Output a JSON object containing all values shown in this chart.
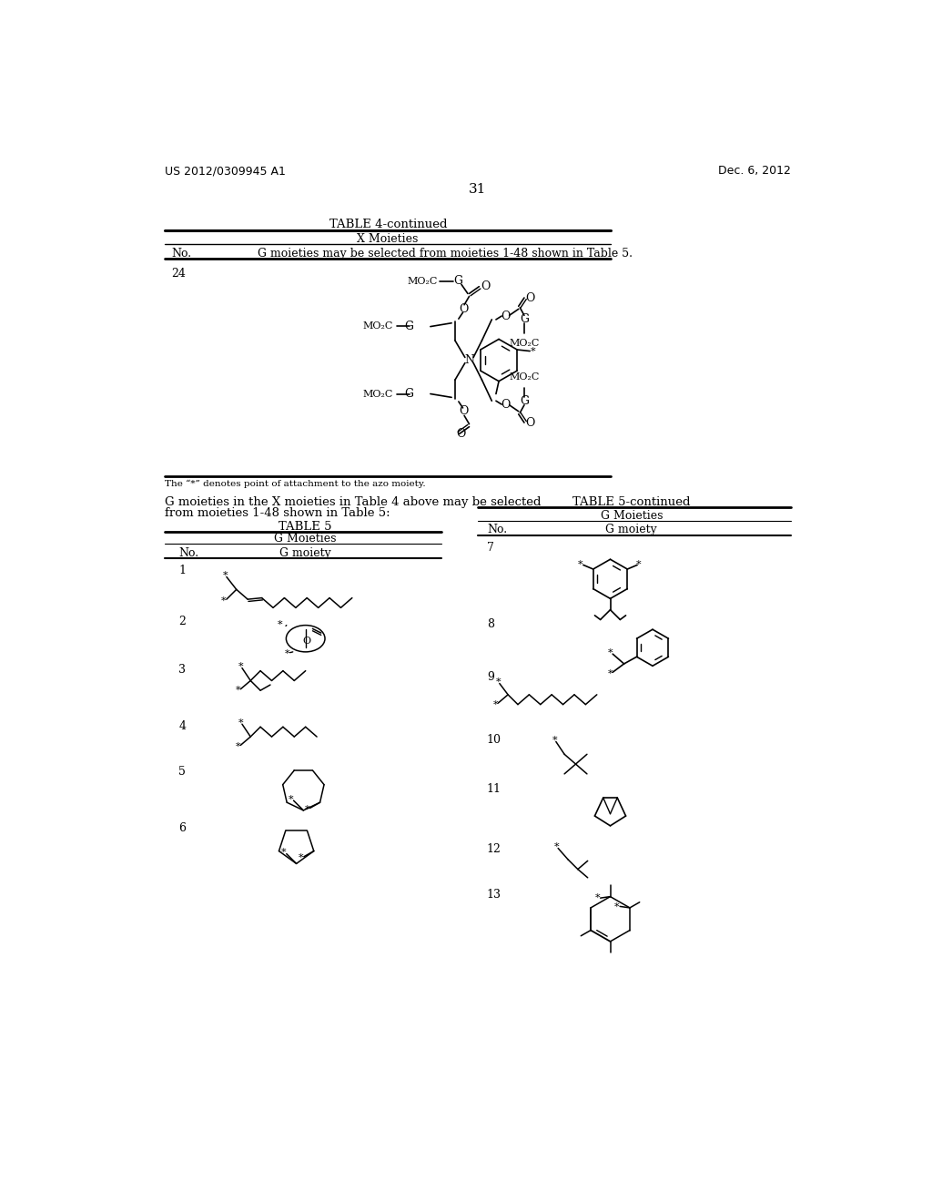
{
  "background_color": "#ffffff",
  "page_number": "31",
  "top_left_text": "US 2012/0309945 A1",
  "top_right_text": "Dec. 6, 2012",
  "table4_continued_title": "TABLE 4-continued",
  "table4_col1": "X Moieties",
  "table4_no_label": "No.",
  "table4_g_label": "G moieties may be selected from moieties 1-48 shown in Table 5.",
  "table4_row_no": "24",
  "table4_footnote": "The “*” denotes point of attachment to the azo moiety.",
  "intro_text_line1": "G moieties in the X moieties in Table 4 above may be selected",
  "intro_text_line2": "from moieties 1-48 shown in Table 5:",
  "table5_title": "TABLE 5",
  "table5_col1": "G Moieties",
  "table5_no_label": "No.",
  "table5_g_label": "G moiety",
  "table5_continued_title": "TABLE 5-continued",
  "table5c_col1": "G Moieties",
  "table5c_no_label": "No.",
  "table5c_g_label": "G moiety"
}
